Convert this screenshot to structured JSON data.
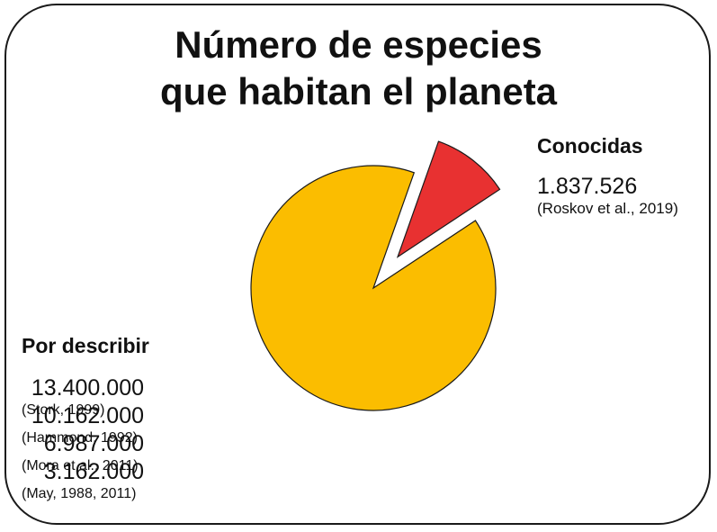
{
  "title": {
    "line1": "Número de especies",
    "line2": "que habitan el planeta"
  },
  "known": {
    "heading": "Conocidas",
    "value": "1.837.526",
    "citation": "(Roskov et al., 2019)"
  },
  "unknown": {
    "heading": "Por describir",
    "estimates": [
      {
        "value": "13.400.000",
        "source": "(Stork, 1999)"
      },
      {
        "value": "10.162.000",
        "source": "(Hammond, 1992)"
      },
      {
        "value": "6.987.000",
        "source": "(Mora et al., 2011)"
      },
      {
        "value": "3.162.000",
        "source": "(May, 1988, 2011)"
      }
    ]
  },
  "colors": {
    "known_slice": "#e83131",
    "unknown_slice": "#fbbd00",
    "outline": "#1a1a1a",
    "text": "#111111"
  },
  "chart_data": {
    "type": "pie",
    "title": "Número de especies que habitan el planeta",
    "slices": [
      {
        "label": "Conocidas",
        "value": 1837526,
        "color": "#e83131",
        "exploded": true
      },
      {
        "label": "Por describir",
        "value": 16008000,
        "color": "#fbbd00",
        "exploded": false
      }
    ]
  }
}
